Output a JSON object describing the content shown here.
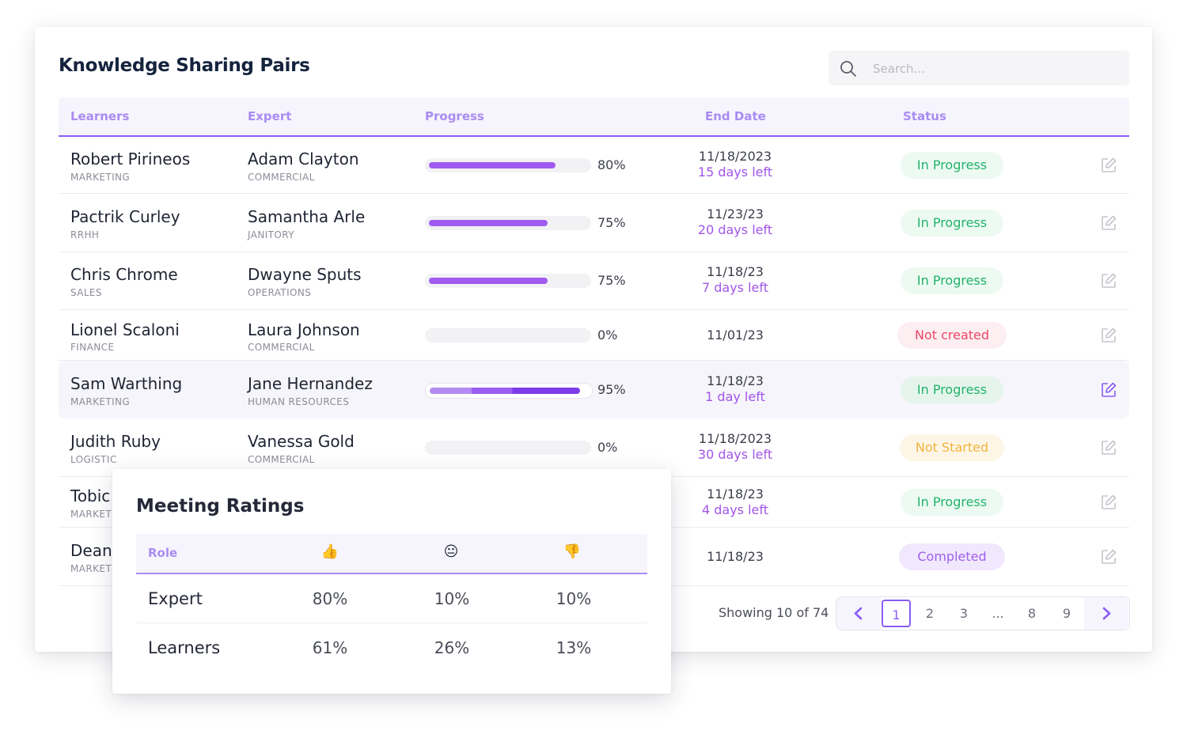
{
  "header": {
    "title": "Knowledge Sharing Pairs"
  },
  "search": {
    "placeholder": "Search..."
  },
  "table": {
    "columns": {
      "learners": "Learners",
      "expert": "Expert",
      "progress": "Progress",
      "end_date": "End Date",
      "status": "Status"
    },
    "rows": [
      {
        "learner": "Robert Pirineos",
        "learner_dept": "MARKETING",
        "expert": "Adam Clayton",
        "expert_dept": "COMMERCIAL",
        "progress": 80,
        "progress_label": "80%",
        "date": "11/18/2023",
        "days_left": "15 days left",
        "status": "In Progress"
      },
      {
        "learner": "Pactrik Curley",
        "learner_dept": "RRHH",
        "expert": "Samantha Arle",
        "expert_dept": "JANITORY",
        "progress": 75,
        "progress_label": "75%",
        "date": "11/23/23",
        "days_left": "20 days left",
        "status": "In Progress"
      },
      {
        "learner": "Chris Chrome",
        "learner_dept": "SALES",
        "expert": "Dwayne Sputs",
        "expert_dept": "OPERATIONS",
        "progress": 75,
        "progress_label": "75%",
        "date": "11/18/23",
        "days_left": "7 days left",
        "status": "In Progress"
      },
      {
        "learner": "Lionel Scaloni",
        "learner_dept": "FINANCE",
        "expert": "Laura Johnson",
        "expert_dept": "COMMERCIAL",
        "progress": 0,
        "progress_label": "0%",
        "date": "11/01/23",
        "days_left": "",
        "status": "Not created"
      },
      {
        "learner": "Sam Warthing",
        "learner_dept": "MARKETING",
        "expert": "Jane Hernandez",
        "expert_dept": "HUMAN RESOURCES",
        "progress": 95,
        "progress_label": "95%",
        "date": "11/18/23",
        "days_left": "1 day left",
        "status": "In Progress"
      },
      {
        "learner": "Judith Ruby",
        "learner_dept": "LOGISTIC",
        "expert": "Vanessa Gold",
        "expert_dept": "COMMERCIAL",
        "progress": 0,
        "progress_label": "0%",
        "date": "11/18/2023",
        "days_left": "30 days left",
        "status": "Not Started"
      },
      {
        "learner": "Tobic",
        "learner_dept": "MARKET",
        "date": "11/18/23",
        "days_left": "4 days left",
        "status": "In Progress"
      },
      {
        "learner": "Dean",
        "learner_dept": "MARKET",
        "date": "11/18/23",
        "days_left": "",
        "status": "Completed"
      }
    ]
  },
  "footer": {
    "showing": "Showing 10 of 74",
    "pages": [
      "1",
      "2",
      "3",
      "...",
      "8",
      "9"
    ],
    "current_page": "1"
  },
  "ratings_popup": {
    "title": "Meeting Ratings",
    "columns": {
      "role": "Role",
      "positive": "👍",
      "neutral": "😐",
      "negative": "👎"
    },
    "rows": [
      {
        "role": "Expert",
        "positive": "80%",
        "neutral": "10%",
        "negative": "10%"
      },
      {
        "role": "Learners",
        "positive": "61%",
        "neutral": "26%",
        "negative": "13%"
      }
    ]
  },
  "colors": {
    "accent": "#8b5cf6",
    "in_progress": "#22b26b",
    "not_created": "#ec4768",
    "not_started": "#f2b33d",
    "completed": "#a060ec"
  },
  "icons": {
    "search": "search-icon",
    "edit": "edit-icon",
    "prev": "chevron-left-icon",
    "next": "chevron-right-icon"
  }
}
